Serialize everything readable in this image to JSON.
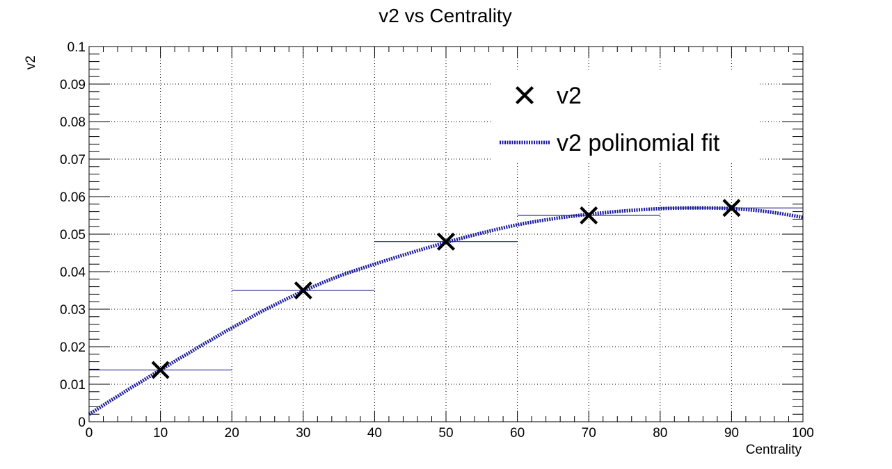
{
  "chart_data": {
    "type": "scatter",
    "title": "v2 vs Centrality",
    "xlabel": "Centrality",
    "ylabel": "v2",
    "xlim": [
      0,
      100
    ],
    "ylim": [
      0,
      0.1
    ],
    "x_ticks": [
      0,
      10,
      20,
      30,
      40,
      50,
      60,
      70,
      80,
      90,
      100
    ],
    "x_tick_labels": [
      "0",
      "10",
      "20",
      "30",
      "40",
      "50",
      "60",
      "70",
      "80",
      "90",
      "100"
    ],
    "y_ticks": [
      0,
      0.01,
      0.02,
      0.03,
      0.04,
      0.05,
      0.06,
      0.07,
      0.08,
      0.09,
      0.1
    ],
    "y_tick_labels": [
      "0",
      "0.01",
      "0.02",
      "0.03",
      "0.04",
      "0.05",
      "0.06",
      "0.07",
      "0.08",
      "0.09",
      "0.1"
    ],
    "grid": true,
    "legend_position": "top-right",
    "series": [
      {
        "name": "v2",
        "kind": "points",
        "marker": "cross",
        "color": "#000000",
        "x": [
          10,
          30,
          50,
          70,
          90
        ],
        "y": [
          0.0138,
          0.035,
          0.048,
          0.055,
          0.057
        ],
        "x_err": [
          10,
          10,
          10,
          10,
          10
        ],
        "err_color": "#00007f"
      },
      {
        "name": "v2 polinomial fit",
        "kind": "line",
        "style": "dotted",
        "color": "#1a1a9c",
        "x": [
          0,
          5,
          10,
          15,
          20,
          25,
          30,
          35,
          40,
          45,
          50,
          55,
          60,
          65,
          70,
          75,
          80,
          85,
          90,
          95,
          100
        ],
        "y": [
          0.002,
          0.008,
          0.0138,
          0.0195,
          0.025,
          0.0302,
          0.0348,
          0.0388,
          0.042,
          0.045,
          0.0478,
          0.0503,
          0.0525,
          0.0541,
          0.0553,
          0.0562,
          0.0568,
          0.057,
          0.0568,
          0.056,
          0.0545
        ]
      }
    ]
  }
}
